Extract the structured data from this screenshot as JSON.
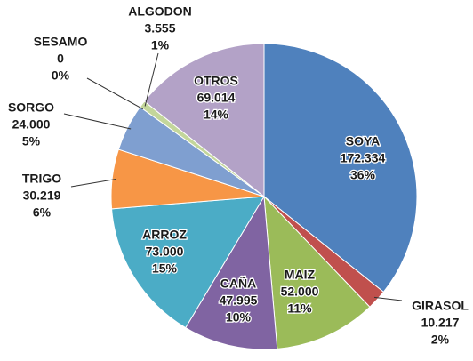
{
  "chart_data": {
    "type": "pie",
    "categories": [
      "SOYA",
      "GIRASOL",
      "MAIZ",
      "CAÑA",
      "ARROZ",
      "TRIGO",
      "SORGO",
      "SESAMO",
      "ALGODON",
      "OTROS"
    ],
    "values": [
      172334,
      10217,
      52000,
      47995,
      73000,
      30219,
      24000,
      0,
      3555,
      69014
    ],
    "value_labels": [
      "172.334",
      "10.217",
      "52.000",
      "47.995",
      "73.000",
      "30.219",
      "24.000",
      "0",
      "3.555",
      "69.014"
    ],
    "percents": [
      36,
      2,
      11,
      10,
      15,
      6,
      5,
      0,
      1,
      14
    ],
    "percent_labels": [
      "36%",
      "2%",
      "11%",
      "10%",
      "15%",
      "6%",
      "5%",
      "0%",
      "1%",
      "14%"
    ],
    "colors": [
      "#4f81bd",
      "#c0504d",
      "#9bbb59",
      "#8064a2",
      "#4bacc6",
      "#f79646",
      "#7f9fd0",
      "#d99694",
      "#c3d69b",
      "#b3a2c7"
    ]
  }
}
